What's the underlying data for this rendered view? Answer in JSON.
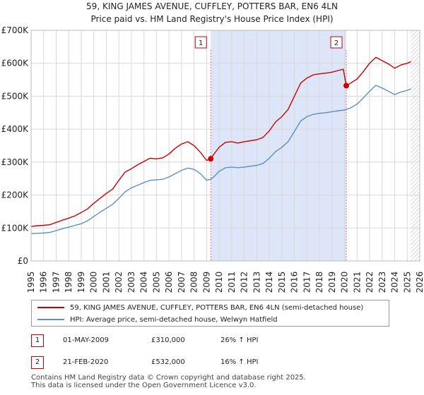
{
  "title_line1": "59, KING JAMES AVENUE, CUFFLEY, POTTERS BAR, EN6 4LN",
  "title_line2": "Price paid vs. HM Land Registry's House Price Index (HPI)",
  "colors": {
    "property": "#cc0000",
    "hpi": "#5b8fc7",
    "shade": "#dde6f8",
    "grid": "#d8d8d8",
    "marker_line": "#e07070"
  },
  "chart_data": {
    "type": "line",
    "title": "59, KING JAMES AVENUE, CUFFLEY, POTTERS BAR, EN6 4LN — Price paid vs. HM Land Registry's House Price Index (HPI)",
    "xlabel": "",
    "ylabel": "",
    "xlim": [
      1995,
      2026
    ],
    "ylim": [
      0,
      700000
    ],
    "x_ticks": [
      1995,
      1996,
      1997,
      1998,
      1999,
      2000,
      2001,
      2002,
      2003,
      2004,
      2005,
      2006,
      2007,
      2008,
      2009,
      2010,
      2011,
      2012,
      2013,
      2014,
      2015,
      2016,
      2017,
      2018,
      2019,
      2020,
      2021,
      2022,
      2023,
      2024,
      2025,
      2026
    ],
    "y_ticks": [
      {
        "value": 0,
        "label": "£0"
      },
      {
        "value": 100000,
        "label": "£100K"
      },
      {
        "value": 200000,
        "label": "£200K"
      },
      {
        "value": 300000,
        "label": "£300K"
      },
      {
        "value": 400000,
        "label": "£400K"
      },
      {
        "value": 500000,
        "label": "£500K"
      },
      {
        "value": 600000,
        "label": "£600K"
      },
      {
        "value": 700000,
        "label": "£700K"
      }
    ],
    "shaded_region": {
      "x_start": 2009.33,
      "x_end": 2020.14
    },
    "future_hatch_start": 2025.25,
    "series": [
      {
        "name": "59, KING JAMES AVENUE, CUFFLEY, POTTERS BAR, EN6 4LN (semi-detached house)",
        "color": "#cc0000",
        "points": [
          [
            1995.0,
            105000
          ],
          [
            1995.5,
            107000
          ],
          [
            1996.0,
            108000
          ],
          [
            1996.5,
            110000
          ],
          [
            1997.0,
            117000
          ],
          [
            1997.5,
            124000
          ],
          [
            1998.0,
            130000
          ],
          [
            1998.5,
            137000
          ],
          [
            1999.0,
            147000
          ],
          [
            1999.5,
            158000
          ],
          [
            2000.0,
            175000
          ],
          [
            2000.5,
            190000
          ],
          [
            2001.0,
            205000
          ],
          [
            2001.5,
            218000
          ],
          [
            2002.0,
            245000
          ],
          [
            2002.5,
            270000
          ],
          [
            2003.0,
            280000
          ],
          [
            2003.5,
            292000
          ],
          [
            2004.0,
            302000
          ],
          [
            2004.5,
            312000
          ],
          [
            2005.0,
            310000
          ],
          [
            2005.5,
            313000
          ],
          [
            2006.0,
            325000
          ],
          [
            2006.5,
            342000
          ],
          [
            2007.0,
            355000
          ],
          [
            2007.5,
            362000
          ],
          [
            2008.0,
            350000
          ],
          [
            2008.5,
            330000
          ],
          [
            2009.0,
            305000
          ],
          [
            2009.33,
            310000
          ],
          [
            2009.6,
            325000
          ],
          [
            2010.0,
            345000
          ],
          [
            2010.5,
            360000
          ],
          [
            2011.0,
            362000
          ],
          [
            2011.5,
            358000
          ],
          [
            2012.0,
            362000
          ],
          [
            2012.5,
            365000
          ],
          [
            2013.0,
            368000
          ],
          [
            2013.5,
            375000
          ],
          [
            2014.0,
            395000
          ],
          [
            2014.5,
            422000
          ],
          [
            2015.0,
            438000
          ],
          [
            2015.5,
            460000
          ],
          [
            2016.0,
            500000
          ],
          [
            2016.5,
            540000
          ],
          [
            2017.0,
            555000
          ],
          [
            2017.5,
            565000
          ],
          [
            2018.0,
            568000
          ],
          [
            2018.5,
            570000
          ],
          [
            2019.0,
            573000
          ],
          [
            2019.5,
            578000
          ],
          [
            2019.9,
            582000
          ],
          [
            2020.14,
            532000
          ],
          [
            2020.5,
            540000
          ],
          [
            2021.0,
            552000
          ],
          [
            2021.5,
            575000
          ],
          [
            2022.0,
            600000
          ],
          [
            2022.5,
            618000
          ],
          [
            2023.0,
            608000
          ],
          [
            2023.5,
            598000
          ],
          [
            2024.0,
            585000
          ],
          [
            2024.5,
            595000
          ],
          [
            2025.0,
            600000
          ],
          [
            2025.3,
            605000
          ]
        ]
      },
      {
        "name": "HPI: Average price, semi-detached house, Welwyn Hatfield",
        "color": "#5b8fc7",
        "points": [
          [
            1995.0,
            83000
          ],
          [
            1995.5,
            84000
          ],
          [
            1996.0,
            85000
          ],
          [
            1996.5,
            87000
          ],
          [
            1997.0,
            92000
          ],
          [
            1997.5,
            98000
          ],
          [
            1998.0,
            103000
          ],
          [
            1998.5,
            108000
          ],
          [
            1999.0,
            113000
          ],
          [
            1999.5,
            122000
          ],
          [
            2000.0,
            135000
          ],
          [
            2000.5,
            148000
          ],
          [
            2001.0,
            160000
          ],
          [
            2001.5,
            172000
          ],
          [
            2002.0,
            190000
          ],
          [
            2002.5,
            210000
          ],
          [
            2003.0,
            222000
          ],
          [
            2003.5,
            230000
          ],
          [
            2004.0,
            238000
          ],
          [
            2004.5,
            245000
          ],
          [
            2005.0,
            246000
          ],
          [
            2005.5,
            248000
          ],
          [
            2006.0,
            255000
          ],
          [
            2006.5,
            265000
          ],
          [
            2007.0,
            275000
          ],
          [
            2007.5,
            282000
          ],
          [
            2008.0,
            278000
          ],
          [
            2008.5,
            265000
          ],
          [
            2009.0,
            245000
          ],
          [
            2009.33,
            248000
          ],
          [
            2009.6,
            256000
          ],
          [
            2010.0,
            272000
          ],
          [
            2010.5,
            283000
          ],
          [
            2011.0,
            285000
          ],
          [
            2011.5,
            283000
          ],
          [
            2012.0,
            285000
          ],
          [
            2012.5,
            288000
          ],
          [
            2013.0,
            290000
          ],
          [
            2013.5,
            296000
          ],
          [
            2014.0,
            312000
          ],
          [
            2014.5,
            332000
          ],
          [
            2015.0,
            345000
          ],
          [
            2015.5,
            362000
          ],
          [
            2016.0,
            393000
          ],
          [
            2016.5,
            425000
          ],
          [
            2017.0,
            438000
          ],
          [
            2017.5,
            445000
          ],
          [
            2018.0,
            448000
          ],
          [
            2018.5,
            450000
          ],
          [
            2019.0,
            453000
          ],
          [
            2019.5,
            456000
          ],
          [
            2020.0,
            458000
          ],
          [
            2020.5,
            465000
          ],
          [
            2021.0,
            476000
          ],
          [
            2021.5,
            495000
          ],
          [
            2022.0,
            515000
          ],
          [
            2022.5,
            533000
          ],
          [
            2023.0,
            525000
          ],
          [
            2023.5,
            515000
          ],
          [
            2024.0,
            505000
          ],
          [
            2024.5,
            513000
          ],
          [
            2025.0,
            518000
          ],
          [
            2025.3,
            522000
          ]
        ]
      }
    ],
    "markers": [
      {
        "label": "1",
        "x": 2009.33,
        "y": 310000
      },
      {
        "label": "2",
        "x": 2020.14,
        "y": 532000
      }
    ]
  },
  "legend": {
    "property_label": "59, KING JAMES AVENUE, CUFFLEY, POTTERS BAR, EN6 4LN (semi-detached house)",
    "hpi_label": "HPI: Average price, semi-detached house, Welwyn Hatfield"
  },
  "transactions": [
    {
      "num": "1",
      "date": "01-MAY-2009",
      "price": "£310,000",
      "hpi": "26% ↑ HPI"
    },
    {
      "num": "2",
      "date": "21-FEB-2020",
      "price": "£532,000",
      "hpi": "16% ↑ HPI"
    }
  ],
  "footer_line1": "Contains HM Land Registry data © Crown copyright and database right 2025.",
  "footer_line2": "This data is licensed under the Open Government Licence v3.0."
}
